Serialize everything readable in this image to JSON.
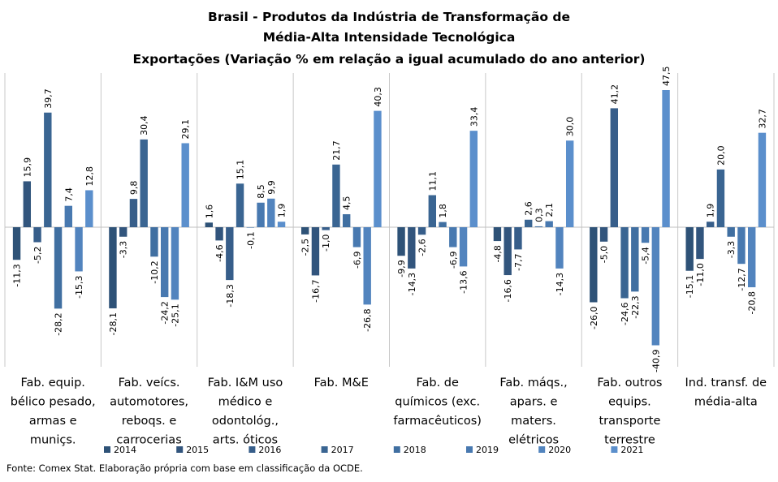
{
  "chart_data": {
    "type": "bar",
    "title": [
      "Brasil - Produtos da Indústria de Transformação de",
      "Média-Alta Intensidade Tecnológica",
      "Exportações (Variação % em relação a igual acumulado do ano anterior)"
    ],
    "categories": [
      [
        "Fab. equip.",
        "bélico pesado,",
        "armas e",
        "muniçs."
      ],
      [
        "Fab. veícs.",
        "automotores,",
        "reboqs. e",
        "carrocerias"
      ],
      [
        "Fab. I&M uso",
        "médico e",
        "odontológ.,",
        "arts. óticos"
      ],
      [
        "Fab. M&E"
      ],
      [
        "Fab. de",
        "químicos (exc.",
        "farmacêuticos)"
      ],
      [
        "Fab. máqs.,",
        "apars. e",
        "maters.",
        "elétricos"
      ],
      [
        "Fab. outros",
        "equips.",
        "transporte",
        "terrestre"
      ],
      [
        "Ind. transf. de",
        "média-alta"
      ]
    ],
    "series": [
      {
        "name": "2014",
        "color": "#2e5277",
        "values": [
          -11.3,
          -28.1,
          1.6,
          -2.5,
          -9.9,
          -4.8,
          -26.0,
          -15.1
        ]
      },
      {
        "name": "2015",
        "color": "#32557d",
        "values": [
          15.9,
          -3.3,
          -4.6,
          -16.7,
          -14.3,
          -16.6,
          -5.0,
          -11.0
        ]
      },
      {
        "name": "2016",
        "color": "#375e8a",
        "values": [
          -5.2,
          9.8,
          -18.3,
          -1.0,
          -2.6,
          -7.7,
          41.2,
          1.9
        ]
      },
      {
        "name": "2017",
        "color": "#3a6592",
        "values": [
          39.7,
          30.4,
          15.1,
          21.7,
          11.1,
          2.6,
          -24.6,
          20.0
        ]
      },
      {
        "name": "2018",
        "color": "#406fa1",
        "values": [
          -28.2,
          -10.2,
          -0.1,
          4.5,
          1.8,
          0.3,
          -22.3,
          -3.3
        ]
      },
      {
        "name": "2019",
        "color": "#4879b0",
        "values": [
          7.4,
          -24.2,
          8.5,
          -6.9,
          -6.9,
          2.1,
          -5.4,
          -12.7
        ]
      },
      {
        "name": "2020",
        "color": "#5284be",
        "values": [
          -15.3,
          -25.1,
          9.9,
          -26.8,
          -13.6,
          -14.3,
          -40.9,
          -20.8
        ]
      },
      {
        "name": "2021",
        "color": "#5b8fcc",
        "values": [
          12.8,
          29.1,
          1.9,
          40.3,
          33.4,
          30.0,
          47.5,
          32.7
        ]
      }
    ],
    "value_labels": [
      [
        "-11,3",
        "15,9",
        "-5,2",
        "39,7",
        "-28,2",
        "7,4",
        "-15,3",
        "12,8"
      ],
      [
        "-28,1",
        "-3,3",
        "9,8",
        "30,4",
        "-10,2",
        "-24,2",
        "-25,1",
        "29,1"
      ],
      [
        "1,6",
        "-4,6",
        "-18,3",
        "15,1",
        "-0,1",
        "8,5",
        "9,9",
        "1,9"
      ],
      [
        "-2,5",
        "-16,7",
        "-1,0",
        "21,7",
        "4,5",
        "-6,9",
        "-26,8",
        "40,3"
      ],
      [
        "-9,9",
        "-14,3",
        "-2,6",
        "11,1",
        "1,8",
        "-6,9",
        "-13,6",
        "33,4"
      ],
      [
        "-4,8",
        "-16,6",
        "-7,7",
        "2,6",
        "0,3",
        "2,1",
        "-14,3",
        "30,0"
      ],
      [
        "-26,0",
        "-5,0",
        "41,2",
        "-24,6",
        "-22,3",
        "-5,4",
        "-40,9",
        "47,5"
      ],
      [
        "-15,1",
        "-11,0",
        "1,9",
        "20,0",
        "-3,3",
        "-12,7",
        "-20,8",
        "32,7"
      ]
    ],
    "ylim": [
      -45,
      50
    ],
    "legend_position": "bottom",
    "grid": false
  },
  "source": "Fonte: Comex Stat. Elaboração própria com base em classificação da OCDE."
}
